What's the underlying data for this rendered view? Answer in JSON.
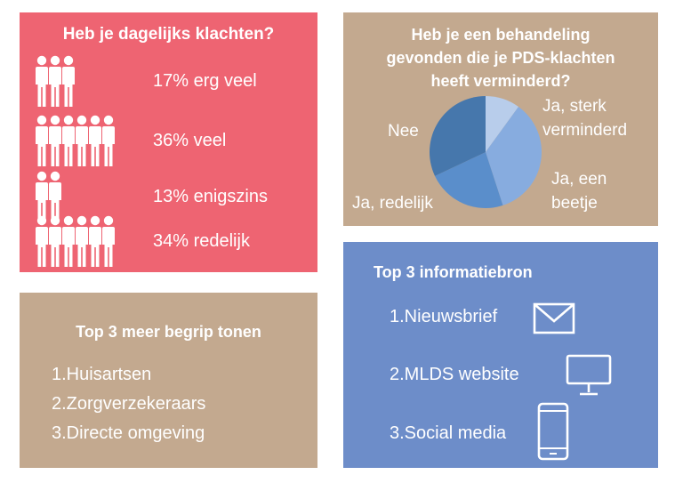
{
  "complaints": {
    "title": "Heb je dagelijks klachten?",
    "rows": [
      {
        "label": "17% erg veel",
        "percent": 17
      },
      {
        "label": "36% veel",
        "percent": 36
      },
      {
        "label": "13% enigszins",
        "percent": 13
      },
      {
        "label": "34% redelijk",
        "percent": 34
      }
    ],
    "icon": "person-icon"
  },
  "treatment": {
    "title_line1": "Heb je een behandeling",
    "title_line2": "gevonden die je PDS-klachten",
    "title_line3": "heeft verminderd?",
    "labels": {
      "sterk_1": "Ja, sterk",
      "sterk_2": "verminderd",
      "beetje_1": "Ja, een",
      "beetje_2": "beetje",
      "redelijk": "Ja, redelijk",
      "nee": "Nee"
    }
  },
  "chart_data": {
    "type": "pie",
    "series": [
      {
        "values": [
          10,
          35,
          23,
          32
        ]
      }
    ],
    "categories": [
      "Ja, sterk verminderd",
      "Ja, een beetje",
      "Ja, redelijk",
      "Nee"
    ],
    "colors": [
      "#b8cdeb",
      "#87acdf",
      "#5a8ecb",
      "#4677ac"
    ]
  },
  "understanding": {
    "title": "Top 3 meer begrip tonen",
    "items": [
      "1.Huisartsen",
      "2.Zorgverzekeraars",
      "3.Directe omgeving"
    ]
  },
  "sources": {
    "title": "Top 3 informatiebron",
    "items": [
      {
        "label": "1.Nieuwsbrief",
        "icon": "envelope-icon"
      },
      {
        "label": "2.MLDS website",
        "icon": "monitor-icon"
      },
      {
        "label": "3.Social media",
        "icon": "smartphone-icon"
      }
    ]
  },
  "colors": {
    "red_panel": "#ee6472",
    "tan_panel": "#c3a98f",
    "blue_panel": "#6d8dc9",
    "text": "#ffffff"
  }
}
